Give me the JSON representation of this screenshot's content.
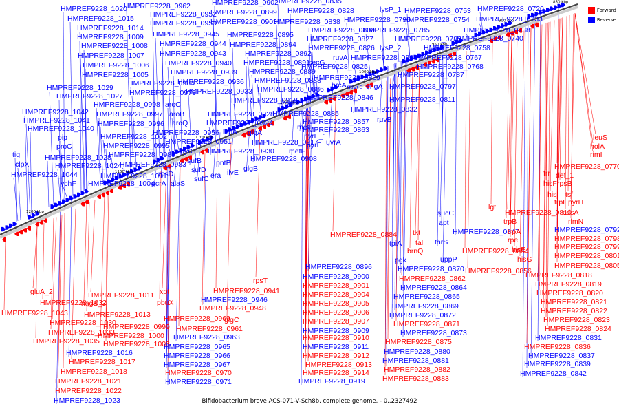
{
  "caption": "Bifidobacterium breve ACS-071-V-Sch8b, complete genome. - 0..2327492",
  "legend": [
    {
      "label": "Forward",
      "color": "#ff0000"
    },
    {
      "label": "Reverse",
      "color": "#0000ff"
    }
  ],
  "ticks": [
    "850 kbp",
    "900 kbp",
    "950 kbp",
    "1000 kbp",
    "1050 kbp",
    "1100 kbp",
    "1150 kbp",
    "1200 kbp"
  ],
  "reverse_labels": [
    [
      "HMPREF9228_1020",
      88,
      16
    ],
    [
      "HMPREF9228_1015",
      98,
      30
    ],
    [
      "HMPREF9228_1014",
      112,
      44
    ],
    [
      "HMPREF9228_1009",
      112,
      57
    ],
    [
      "HMPREF9228_1008",
      118,
      70
    ],
    [
      "HMPREF9228_1007",
      113,
      84
    ],
    [
      "HMPREF9228_1006",
      120,
      98
    ],
    [
      "HMPREF9228_1005",
      119,
      112
    ],
    [
      "HMPREF9228_1029",
      68,
      131
    ],
    [
      "HMPREF9228_1027",
      82,
      143
    ],
    [
      "HMPREF9228_1042",
      32,
      166
    ],
    [
      "HMPREF9228_1041",
      34,
      178
    ],
    [
      "HMPREF9228_1040",
      40,
      190
    ],
    [
      "pip",
      84,
      203
    ],
    [
      "proC",
      82,
      216
    ],
    [
      "tig",
      18,
      228
    ],
    [
      "clpX",
      22,
      242
    ],
    [
      "HMPREF9228_1044",
      16,
      257
    ],
    [
      "HMPREF9228_1028",
      65,
      232
    ],
    [
      "HMPREF9228_1024",
      80,
      244
    ],
    [
      "ychF",
      88,
      270
    ],
    [
      "HMPREF9228_1001",
      146,
      259
    ],
    [
      "HMPREF9228_1004",
      128,
      270
    ],
    [
      "HMPREF9228_0962",
      180,
      12
    ],
    [
      "HMPREF9228_0952",
      218,
      24
    ],
    [
      "HMPREF9228_0950",
      218,
      37
    ],
    [
      "HMPREF9228_0945",
      222,
      53
    ],
    [
      "HMPREF9228_0944",
      232,
      67
    ],
    [
      "HMPREF9228_0943",
      232,
      81
    ],
    [
      "HMPREF9228_0940",
      240,
      95
    ],
    [
      "HMPREF9228_0939",
      248,
      108
    ],
    [
      "HMPREF9228_0984",
      186,
      124
    ],
    [
      "HMPREF9228_0979",
      188,
      138
    ],
    [
      "HMPREF9228_0936",
      258,
      122
    ],
    [
      "HMPREF9228_0933",
      270,
      136
    ],
    [
      "HMPREF9228_0998",
      136,
      155
    ],
    [
      "HMPREF9228_0997",
      140,
      169
    ],
    [
      "HMPREF9228_0996",
      142,
      183
    ],
    [
      "HMPREF9228_1002",
      146,
      202
    ],
    [
      "HMPREF9228_0995",
      150,
      215
    ],
    [
      "HMPREF9228_0989",
      158,
      228
    ],
    [
      "HMPREF9228_0983",
      174,
      242
    ],
    [
      "aroC",
      240,
      155
    ],
    [
      "aroB",
      246,
      169
    ],
    [
      "aroQ",
      250,
      182
    ],
    [
      "HMPREF9228_0956",
      222,
      196
    ],
    [
      "HMPREF9228_0951",
      240,
      209
    ],
    [
      "HMPREF9228_0928",
      302,
      169
    ],
    [
      "HMPREF9228_0924",
      300,
      182
    ],
    [
      "lepA",
      324,
      195
    ],
    [
      "pyrG",
      262,
      223
    ],
    [
      "sufB",
      272,
      237
    ],
    [
      "sufD",
      278,
      250
    ],
    [
      "sufC",
      282,
      263
    ],
    [
      "rpsD",
      230,
      256
    ],
    [
      "pcrA",
      220,
      270
    ],
    [
      "alaS",
      248,
      270
    ],
    [
      "pntB",
      314,
      240
    ],
    [
      "era",
      306,
      258
    ],
    [
      "ilvE",
      330,
      254
    ],
    [
      "HMPREF9228_0930",
      302,
      223
    ],
    [
      "glgA",
      360,
      196
    ],
    [
      "glgB",
      354,
      248
    ],
    [
      "HMPREF9228_0902",
      308,
      7
    ],
    [
      "HMPREF9228_0899",
      306,
      21
    ],
    [
      "HMPREF9228_0903",
      306,
      35
    ],
    [
      "HMPREF9228_0895",
      330,
      54
    ],
    [
      "HMPREF9228_0894",
      334,
      68
    ],
    [
      "HMPREF9228_0892",
      356,
      81
    ],
    [
      "HMPREF9228_0891",
      354,
      94
    ],
    [
      "HMPREF9228_0889",
      362,
      107
    ],
    [
      "HMPREF9228_0888",
      370,
      120
    ],
    [
      "HMPREF9228_0886",
      374,
      133
    ],
    [
      "HMPREF9228_0918",
      336,
      149
    ],
    [
      "HMPREF9228_0885",
      396,
      168
    ],
    [
      "HMPREF9228_0917",
      366,
      210
    ],
    [
      "HMPREF9228_0908",
      364,
      234
    ],
    [
      "secG",
      448,
      94
    ],
    [
      "pyrB",
      410,
      153
    ],
    [
      "metE",
      432,
      188
    ],
    [
      "pyrE_1",
      442,
      201
    ],
    [
      "pyrE",
      446,
      214
    ],
    [
      "metF",
      420,
      223
    ],
    [
      "HMPREF9228_0835",
      400,
      5
    ],
    [
      "HMPREF9228_0828",
      418,
      19
    ],
    [
      "HMPREF9228_0838",
      398,
      35
    ],
    [
      "HMPREF9228_0830",
      448,
      47
    ],
    [
      "HMPREF9228_0827",
      446,
      60
    ],
    [
      "HMPREF9228_0826",
      448,
      73
    ],
    [
      "HMPREF9228_0825",
      438,
      100
    ],
    [
      "HMPREF9228_0829",
      456,
      116
    ],
    [
      "HMPREF9228_0846",
      446,
      145
    ],
    [
      "HMPREF9228_0857",
      440,
      180
    ],
    [
      "HMPREF9228_0863",
      440,
      192
    ],
    [
      "HMPREF9228_0832",
      510,
      162
    ],
    [
      "ruvA",
      484,
      87
    ],
    [
      "hrcA",
      482,
      127
    ],
    [
      "ruvC",
      504,
      130
    ],
    [
      "engA",
      532,
      129
    ],
    [
      "lysP_2",
      552,
      73
    ],
    [
      "ruvB",
      548,
      177
    ],
    [
      "uvrA",
      474,
      210
    ],
    [
      "lysP_1",
      552,
      17
    ],
    [
      "HMPREF9228_0796",
      500,
      32
    ],
    [
      "HMPREF9228_0785",
      528,
      47
    ],
    [
      "HMPREF9228_0783",
      574,
      60
    ],
    [
      "HMPREF9228_0806",
      510,
      87
    ],
    [
      "HMPREF9228_0767",
      604,
      87
    ],
    [
      "HMPREF9228_0768",
      606,
      100
    ],
    [
      "HMPREF9228_0787",
      578,
      112
    ],
    [
      "HMPREF9228_0797",
      566,
      129
    ],
    [
      "HMPREF9228_0811",
      566,
      148
    ],
    [
      "HMPREF9228_0753",
      588,
      19
    ],
    [
      "HMPREF9228_0754",
      586,
      32
    ],
    [
      "HMPREF9228_0758",
      616,
      73
    ],
    [
      "HMPREF9228_0720",
      694,
      16
    ],
    [
      "HMPREF9228_0733",
      692,
      31
    ],
    [
      "HMPREF9228_0738",
      674,
      47
    ],
    [
      "HMPREF9228_0740",
      664,
      59
    ],
    [
      "sucC",
      636,
      313
    ],
    [
      "apt",
      638,
      327
    ],
    [
      "thrS",
      632,
      355
    ],
    [
      "uppP",
      640,
      380
    ],
    [
      "HMPREF9228_0847",
      658,
      340
    ],
    [
      "tpiA",
      566,
      357
    ],
    [
      "pgk",
      574,
      381
    ],
    [
      "HMPREF9228_0870",
      578,
      394
    ],
    [
      "HMPREF9228_0864",
      582,
      421
    ],
    [
      "HMPREF9228_0865",
      572,
      434
    ],
    [
      "HMPREF9228_0869",
      570,
      448
    ],
    [
      "HMPREF9228_0872",
      566,
      461
    ],
    [
      "HMPREF9228_0873",
      582,
      487
    ],
    [
      "HMPREF9228_0880",
      558,
      514
    ],
    [
      "HMPREF9228_0881",
      556,
      527
    ],
    [
      "HMPREF9228_0896",
      444,
      391
    ],
    [
      "HMPREF9228_0900",
      440,
      405
    ],
    [
      "HMPREF9228_0909",
      440,
      484
    ],
    [
      "HMPREF9228_0911",
      440,
      507
    ],
    [
      "HMPREF9228_0919",
      434,
      557
    ],
    [
      "HMPREF9228_0946",
      292,
      439
    ],
    [
      "HMPREF9228_0963",
      252,
      493
    ],
    [
      "HMPREF9228_0965",
      238,
      507
    ],
    [
      "HMPREF9228_0966",
      238,
      520
    ],
    [
      "HMPREF9228_0967",
      238,
      533
    ],
    [
      "HMPREF9228_0971",
      240,
      558
    ],
    [
      "HMPREF9228_1016",
      96,
      516
    ],
    [
      "HMPREF9228_1023",
      78,
      585
    ],
    [
      "HMPREF9228_0792",
      806,
      337
    ],
    [
      "HMPREF9228_0831",
      778,
      494
    ],
    [
      "HMPREF9228_0837",
      768,
      520
    ],
    [
      "HMPREF9228_0839",
      762,
      532
    ],
    [
      "HMPREF9228_0842",
      756,
      546
    ]
  ],
  "forward_labels": [
    [
      "leuS",
      862,
      203
    ],
    [
      "holA",
      858,
      216
    ],
    [
      "rimI",
      858,
      228
    ],
    [
      "HMPREF9228_0770",
      806,
      245
    ],
    [
      "frr",
      790,
      255
    ],
    [
      "def_1",
      808,
      258
    ],
    [
      "hisF",
      790,
      270
    ],
    [
      "rpsB",
      810,
      270
    ],
    [
      "hisI",
      796,
      286
    ],
    [
      "tsf",
      822,
      286
    ],
    [
      "trpE",
      806,
      297
    ],
    [
      "pyrH",
      826,
      297
    ],
    [
      "cdsA",
      818,
      312
    ],
    [
      "rlmN",
      826,
      325
    ],
    [
      "HMPREF9228_0810",
      734,
      312
    ],
    [
      "lgt",
      710,
      304
    ],
    [
      "trpB",
      732,
      325
    ],
    [
      "trpA",
      738,
      340
    ],
    [
      "rpe",
      738,
      352
    ],
    [
      "hisE",
      744,
      366
    ],
    [
      "hisG",
      752,
      380
    ],
    [
      "HMPREF9228_0798",
      806,
      350
    ],
    [
      "HMPREF9228_0799",
      806,
      362
    ],
    [
      "HMPREF9228_0801",
      806,
      375
    ],
    [
      "HMPREF9228_0805",
      806,
      389
    ],
    [
      "HMPREF9228_0818",
      764,
      403
    ],
    [
      "HMPREF9228_0819",
      778,
      416
    ],
    [
      "HMPREF9228_0820",
      780,
      429
    ],
    [
      "HMPREF9228_0821",
      786,
      442
    ],
    [
      "HMPREF9228_0822",
      786,
      455
    ],
    [
      "HMPREF9228_0823",
      790,
      468
    ],
    [
      "HMPREF9228_0824",
      792,
      481
    ],
    [
      "HMPREF9228_0836",
      762,
      507
    ],
    [
      "HMPREF9228_0854",
      672,
      368
    ],
    [
      "HMPREF9228_0856",
      676,
      397
    ],
    [
      "tkt",
      600,
      341
    ],
    [
      "tal",
      604,
      356
    ],
    [
      "brnQ",
      592,
      368
    ],
    [
      "HMPREF9228_0862",
      580,
      408
    ],
    [
      "HMPREF9228_0871",
      572,
      474
    ],
    [
      "HMPREF9228_0875",
      560,
      500
    ],
    [
      "HMPREF9228_0882",
      558,
      540
    ],
    [
      "HMPREF9228_0883",
      556,
      553
    ],
    [
      "HMPREF9228_0884",
      480,
      344
    ],
    [
      "HMPREF9228_0901",
      440,
      418
    ],
    [
      "HMPREF9228_0904",
      440,
      431
    ],
    [
      "HMPREF9228_0905",
      440,
      444
    ],
    [
      "HMPREF9228_0906",
      440,
      457
    ],
    [
      "HMPREF9228_0907",
      440,
      470
    ],
    [
      "HMPREF9228_0910",
      440,
      494
    ],
    [
      "HMPREF9228_0912",
      440,
      520
    ],
    [
      "HMPREF9228_0913",
      444,
      533
    ],
    [
      "HMPREF9228_0914",
      440,
      545
    ],
    [
      "rpsT",
      368,
      411
    ],
    [
      "HMPREF9228_0941",
      310,
      426
    ],
    [
      "HMPREF9228_0948",
      290,
      451
    ],
    [
      "xpt",
      232,
      427
    ],
    [
      "pbuX",
      228,
      443
    ],
    [
      "HMPREF9228_0969",
      238,
      466
    ],
    [
      "glgC",
      326,
      468
    ],
    [
      "HMPREF9228_0961",
      256,
      481
    ],
    [
      "HMPREF9228_0970",
      240,
      545
    ],
    [
      "gluA_2",
      44,
      427
    ],
    [
      "HMPREF9228_1032",
      58,
      443
    ],
    [
      "nagB_3",
      118,
      444
    ],
    [
      "HMPREF9228_1011",
      128,
      432
    ],
    [
      "HMPREF9228_1043",
      2,
      458
    ],
    [
      "HMPREF9228_1013",
      122,
      460
    ],
    [
      "HMPREF9228_1030",
      72,
      472
    ],
    [
      "HMPREF9228_0999",
      150,
      478
    ],
    [
      "HMPREF9228_1033",
      70,
      486
    ],
    [
      "HMPREF9228_1000",
      142,
      491
    ],
    [
      "HMPREF9228_1035",
      48,
      499
    ],
    [
      "HMPREF9228_1003",
      150,
      503
    ],
    [
      "HMPREF9228_1017",
      100,
      529
    ],
    [
      "HMPREF9228_1018",
      88,
      543
    ],
    [
      "HMPREF9228_1021",
      80,
      557
    ],
    [
      "HMPREF9228_1022",
      80,
      571
    ]
  ]
}
